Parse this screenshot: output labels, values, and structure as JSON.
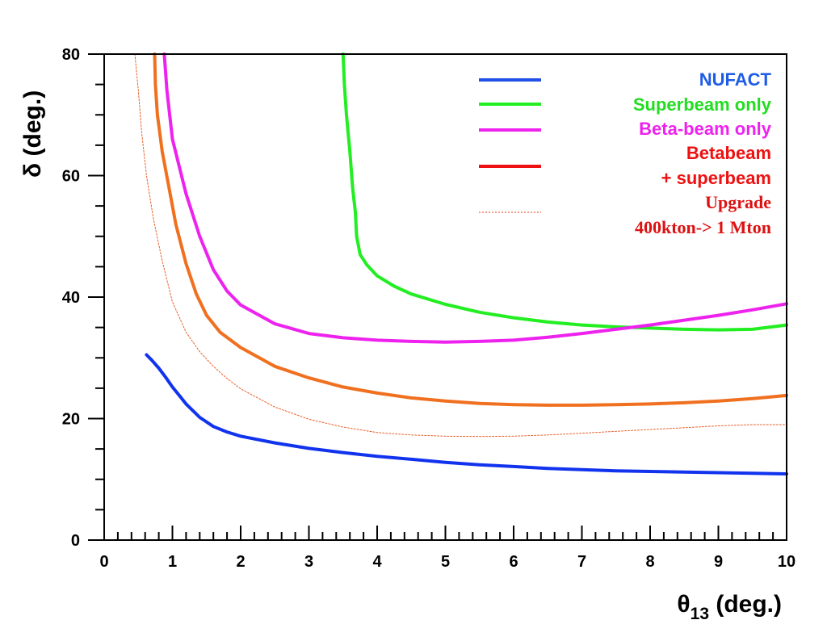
{
  "chart_data": {
    "type": "line",
    "xlabel_symbol": "θ",
    "xlabel_sub": "13",
    "xlabel_rest": " (deg.)",
    "ylabel_symbol": "δ",
    "ylabel_rest": " (deg.)",
    "xlim": [
      0,
      10
    ],
    "ylim": [
      0,
      80
    ],
    "x_ticks": [
      "0",
      "1",
      "2",
      "3",
      "4",
      "5",
      "6",
      "7",
      "8",
      "9",
      "10"
    ],
    "y_ticks": [
      "0",
      "20",
      "40",
      "60",
      "80"
    ],
    "legend_position": "top-right",
    "legend": [
      {
        "line1": "NUFACT",
        "line2": "",
        "color": "#1f4fe6",
        "text_color": "#1f5ce6",
        "style": "solid"
      },
      {
        "line1": "Superbeam only",
        "line2": "",
        "color": "#22ee22",
        "text_color": "#22dd22",
        "style": "solid"
      },
      {
        "line1": "Beta-beam only",
        "line2": "",
        "color": "#ee22ee",
        "text_color": "#ee22ee",
        "style": "solid"
      },
      {
        "line1": "Betabeam",
        "line2": "+ superbeam",
        "color": "#ee1111",
        "text_color": "#ee1111",
        "style": "solid"
      },
      {
        "line1": "Upgrade",
        "line2": "400kton-> 1 Mton",
        "color": "#ee3311",
        "text_color": "#dd1111",
        "style": "dotted"
      }
    ],
    "series": [
      {
        "key": "nufact",
        "color": "#1133ee",
        "width": 4,
        "dash": "",
        "points": [
          [
            0.62,
            30.5
          ],
          [
            0.7,
            29.6
          ],
          [
            0.8,
            28.3
          ],
          [
            0.9,
            26.8
          ],
          [
            1.0,
            25.2
          ],
          [
            1.1,
            23.8
          ],
          [
            1.2,
            22.4
          ],
          [
            1.4,
            20.2
          ],
          [
            1.6,
            18.7
          ],
          [
            1.8,
            17.8
          ],
          [
            2.0,
            17.1
          ],
          [
            2.5,
            16.0
          ],
          [
            3.0,
            15.1
          ],
          [
            3.5,
            14.4
          ],
          [
            4.0,
            13.8
          ],
          [
            4.5,
            13.3
          ],
          [
            5.0,
            12.8
          ],
          [
            5.5,
            12.4
          ],
          [
            6.0,
            12.1
          ],
          [
            6.5,
            11.8
          ],
          [
            7.0,
            11.6
          ],
          [
            7.5,
            11.4
          ],
          [
            8.0,
            11.3
          ],
          [
            8.5,
            11.2
          ],
          [
            9.0,
            11.1
          ],
          [
            9.5,
            11.0
          ],
          [
            10.0,
            10.9
          ]
        ]
      },
      {
        "key": "superbeam",
        "color": "#22ee22",
        "width": 4,
        "dash": "",
        "points": [
          [
            3.5,
            80
          ],
          [
            3.52,
            75
          ],
          [
            3.55,
            70
          ],
          [
            3.6,
            64
          ],
          [
            3.64,
            58
          ],
          [
            3.68,
            54
          ],
          [
            3.7,
            50
          ],
          [
            3.75,
            47
          ],
          [
            3.85,
            45.3
          ],
          [
            4.0,
            43.5
          ],
          [
            4.25,
            41.8
          ],
          [
            4.5,
            40.5
          ],
          [
            5.0,
            38.8
          ],
          [
            5.5,
            37.5
          ],
          [
            6.0,
            36.6
          ],
          [
            6.5,
            35.9
          ],
          [
            7.0,
            35.4
          ],
          [
            7.5,
            35.1
          ],
          [
            8.0,
            34.9
          ],
          [
            8.5,
            34.7
          ],
          [
            9.0,
            34.6
          ],
          [
            9.5,
            34.7
          ],
          [
            10.0,
            35.4
          ]
        ]
      },
      {
        "key": "betabeam",
        "color": "#ee22ee",
        "width": 4,
        "dash": "",
        "points": [
          [
            0.88,
            80
          ],
          [
            0.92,
            74
          ],
          [
            1.0,
            66
          ],
          [
            1.2,
            57
          ],
          [
            1.4,
            50
          ],
          [
            1.6,
            44.5
          ],
          [
            1.8,
            41
          ],
          [
            2.0,
            38.7
          ],
          [
            2.5,
            35.6
          ],
          [
            3.0,
            34.0
          ],
          [
            3.5,
            33.3
          ],
          [
            4.0,
            32.9
          ],
          [
            4.5,
            32.7
          ],
          [
            5.0,
            32.6
          ],
          [
            5.5,
            32.7
          ],
          [
            6.0,
            32.9
          ],
          [
            6.5,
            33.4
          ],
          [
            7.0,
            34.0
          ],
          [
            7.5,
            34.7
          ],
          [
            8.0,
            35.4
          ],
          [
            8.5,
            36.2
          ],
          [
            9.0,
            37.0
          ],
          [
            9.5,
            37.9
          ],
          [
            10.0,
            38.9
          ]
        ]
      },
      {
        "key": "combined",
        "color": "#f07020",
        "width": 4,
        "dash": "",
        "points": [
          [
            0.74,
            80
          ],
          [
            0.75,
            75
          ],
          [
            0.78,
            70
          ],
          [
            0.85,
            64
          ],
          [
            0.95,
            58
          ],
          [
            1.05,
            52
          ],
          [
            1.2,
            45.5
          ],
          [
            1.35,
            40.5
          ],
          [
            1.5,
            37.0
          ],
          [
            1.7,
            34.2
          ],
          [
            2.0,
            31.7
          ],
          [
            2.5,
            28.6
          ],
          [
            3.0,
            26.7
          ],
          [
            3.5,
            25.2
          ],
          [
            4.0,
            24.2
          ],
          [
            4.5,
            23.4
          ],
          [
            5.0,
            22.9
          ],
          [
            5.5,
            22.5
          ],
          [
            6.0,
            22.3
          ],
          [
            6.5,
            22.2
          ],
          [
            7.0,
            22.2
          ],
          [
            7.5,
            22.3
          ],
          [
            8.0,
            22.4
          ],
          [
            8.5,
            22.6
          ],
          [
            9.0,
            22.9
          ],
          [
            9.5,
            23.3
          ],
          [
            10.0,
            23.8
          ]
        ]
      },
      {
        "key": "upgrade",
        "color": "#e8602a",
        "width": 1,
        "dash": "2,2",
        "points": [
          [
            0.45,
            80
          ],
          [
            0.5,
            74
          ],
          [
            0.55,
            67
          ],
          [
            0.62,
            60
          ],
          [
            0.72,
            53
          ],
          [
            0.85,
            46
          ],
          [
            1.0,
            39.2
          ],
          [
            1.2,
            34.2
          ],
          [
            1.4,
            31.0
          ],
          [
            1.6,
            28.6
          ],
          [
            1.8,
            26.6
          ],
          [
            2.0,
            24.9
          ],
          [
            2.5,
            21.9
          ],
          [
            3.0,
            19.9
          ],
          [
            3.5,
            18.6
          ],
          [
            4.0,
            17.7
          ],
          [
            4.5,
            17.3
          ],
          [
            5.0,
            17.1
          ],
          [
            5.5,
            17.05
          ],
          [
            6.0,
            17.1
          ],
          [
            6.5,
            17.3
          ],
          [
            7.0,
            17.6
          ],
          [
            7.5,
            17.9
          ],
          [
            8.0,
            18.2
          ],
          [
            8.5,
            18.5
          ],
          [
            9.0,
            18.8
          ],
          [
            9.5,
            19.0
          ],
          [
            10.0,
            19.0
          ]
        ]
      }
    ]
  }
}
